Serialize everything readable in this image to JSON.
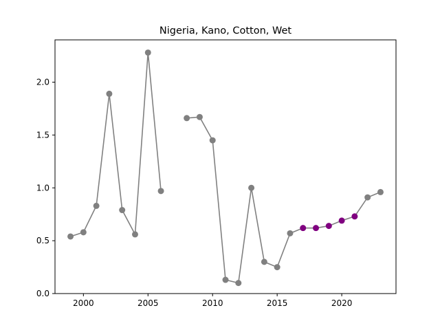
{
  "chart_data": {
    "type": "line",
    "title": "Nigeria, Kano, Cotton, Wet",
    "xlabel": "",
    "ylabel": "",
    "xlim": [
      1997.8,
      2024.2
    ],
    "ylim": [
      0.0,
      2.4
    ],
    "xticks": [
      2000,
      2005,
      2010,
      2015,
      2020
    ],
    "yticks": [
      0.0,
      0.5,
      1.0,
      1.5,
      2.0
    ],
    "xtick_labels": [
      "2000",
      "2005",
      "2010",
      "2015",
      "2020"
    ],
    "ytick_labels": [
      "0.0",
      "0.5",
      "1.0",
      "1.5",
      "2.0"
    ],
    "grid": false,
    "legend": "none",
    "line_color": "#808080",
    "series": [
      {
        "x": [
          1999,
          2000,
          2001,
          2002,
          2003,
          2004,
          2005,
          2006,
          2007,
          2008,
          2009,
          2010,
          2011,
          2012,
          2013,
          2014,
          2015,
          2016,
          2017,
          2018,
          2019,
          2020,
          2021,
          2022,
          2023
        ],
        "y": [
          0.54,
          0.58,
          0.83,
          1.89,
          0.79,
          0.56,
          2.28,
          0.97,
          null,
          1.66,
          1.67,
          1.45,
          0.13,
          0.1,
          1.0,
          0.3,
          0.25,
          0.57,
          0.62,
          0.62,
          0.64,
          0.69,
          0.73,
          0.91,
          0.96
        ],
        "colors": [
          "#808080",
          "#808080",
          "#808080",
          "#808080",
          "#808080",
          "#808080",
          "#808080",
          "#808080",
          "#808080",
          "#808080",
          "#808080",
          "#808080",
          "#808080",
          "#808080",
          "#808080",
          "#808080",
          "#808080",
          "#808080",
          "#800080",
          "#800080",
          "#800080",
          "#800080",
          "#800080",
          "#808080",
          "#808080"
        ]
      }
    ]
  }
}
